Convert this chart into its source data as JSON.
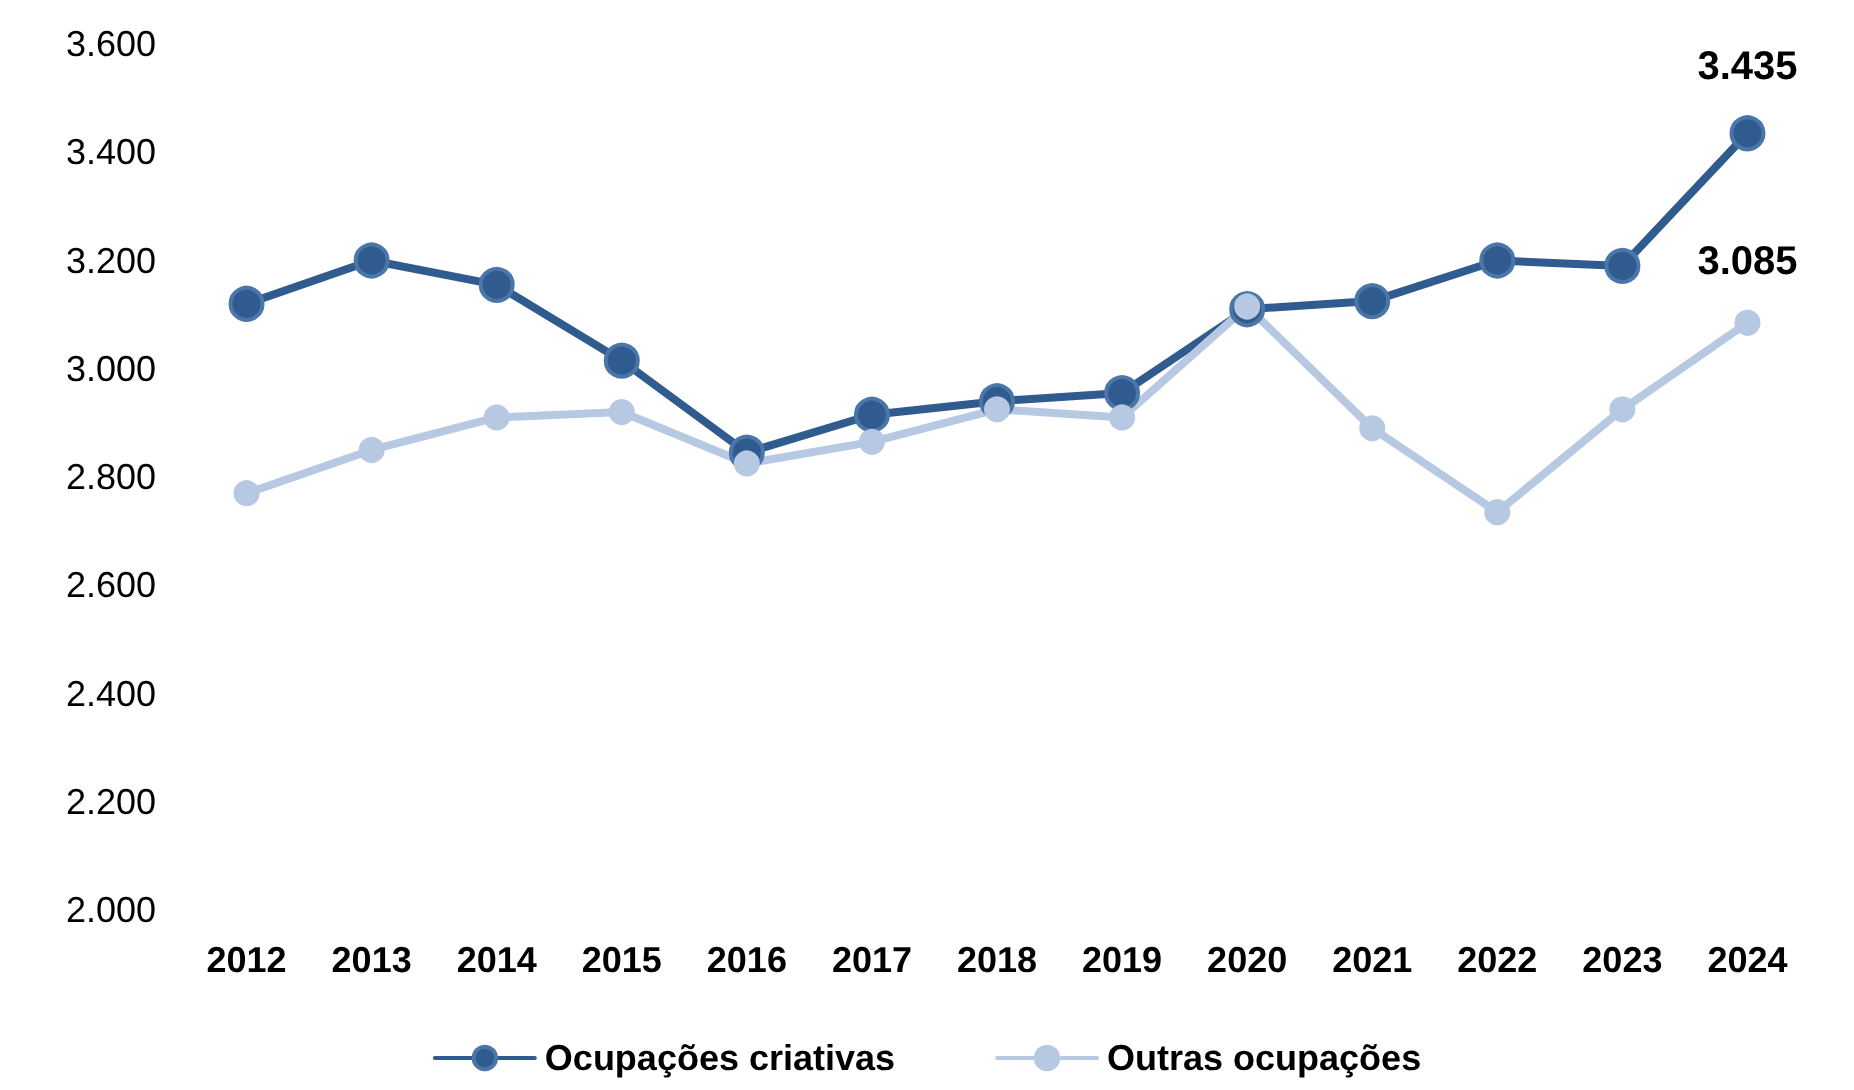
{
  "chart_data": {
    "type": "line",
    "categories": [
      "2012",
      "2013",
      "2014",
      "2015",
      "2016",
      "2017",
      "2018",
      "2019",
      "2020",
      "2021",
      "2022",
      "2023",
      "2024"
    ],
    "series": [
      {
        "name": "Ocupações criativas",
        "color": "#2f5b8e",
        "values": [
          3120,
          3200,
          3155,
          3015,
          2845,
          2915,
          2940,
          2955,
          3110,
          3125,
          3200,
          3190,
          3435
        ],
        "value_labels": [
          null,
          null,
          null,
          null,
          null,
          null,
          null,
          null,
          null,
          null,
          null,
          null,
          "3.435"
        ]
      },
      {
        "name": "Outras ocupações",
        "color": "#b7c9e2",
        "values": [
          2770,
          2850,
          2910,
          2920,
          2825,
          2865,
          2925,
          2910,
          3115,
          2890,
          2735,
          2925,
          3085
        ],
        "value_labels": [
          null,
          null,
          null,
          null,
          null,
          null,
          null,
          null,
          null,
          null,
          null,
          null,
          "3.085"
        ]
      }
    ],
    "ylim": [
      2000,
      3600
    ],
    "yticks": [
      {
        "value": 2000,
        "label": "2.000"
      },
      {
        "value": 2200,
        "label": "2.200"
      },
      {
        "value": 2400,
        "label": "2.400"
      },
      {
        "value": 2600,
        "label": "2.600"
      },
      {
        "value": 2800,
        "label": "2.800"
      },
      {
        "value": 3000,
        "label": "3.000"
      },
      {
        "value": 3200,
        "label": "3.200"
      },
      {
        "value": 3400,
        "label": "3.400"
      },
      {
        "value": 3600,
        "label": "3.600"
      }
    ],
    "grid": false,
    "legend": "bottom",
    "marker": "circle",
    "line_style": "solid"
  }
}
